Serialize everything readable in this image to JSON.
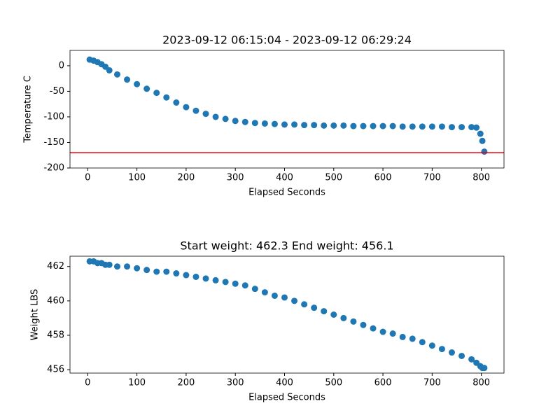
{
  "chart_data": [
    {
      "type": "scatter",
      "title": "2023-09-12 06:15:04 - 2023-09-12 06:29:24",
      "x_label": "Elapsed Seconds",
      "y_label": "Temperature C",
      "x": [
        4,
        12,
        20,
        28,
        36,
        44,
        60,
        80,
        100,
        120,
        140,
        160,
        180,
        200,
        220,
        240,
        260,
        280,
        300,
        320,
        340,
        360,
        380,
        400,
        420,
        440,
        460,
        480,
        500,
        520,
        540,
        560,
        580,
        600,
        620,
        640,
        660,
        680,
        700,
        720,
        740,
        760,
        780,
        790,
        798,
        802,
        806
      ],
      "values": [
        12,
        10,
        7,
        3,
        -2,
        -9,
        -17,
        -27,
        -36,
        -45,
        -53,
        -62,
        -72,
        -81,
        -88,
        -94,
        -100,
        -104,
        -108,
        -110,
        -112,
        -113,
        -114,
        -115,
        -115,
        -116,
        -116,
        -117,
        -117,
        -117,
        -118,
        -118,
        -118,
        -118,
        -118,
        -119,
        -119,
        -119,
        -119,
        -119,
        -120,
        -120,
        -120,
        -121,
        -133,
        -147,
        -168
      ],
      "color": "#1f77b4",
      "hlines": [
        {
          "value": -170,
          "color": "#e8000b"
        }
      ],
      "xlim": [
        -36,
        846
      ],
      "xticks": [
        0,
        100,
        200,
        300,
        400,
        500,
        600,
        700,
        800
      ],
      "ylim": [
        -200,
        30
      ],
      "yticks": [
        -200,
        -150,
        -100,
        -50,
        0
      ]
    },
    {
      "type": "scatter",
      "title": "Start weight: 462.3 End weight: 456.1",
      "x_label": "Elapsed Seconds",
      "y_label": "Weight LBS",
      "x": [
        4,
        12,
        20,
        28,
        36,
        44,
        60,
        80,
        100,
        120,
        140,
        160,
        180,
        200,
        220,
        240,
        260,
        280,
        300,
        320,
        340,
        360,
        380,
        400,
        420,
        440,
        460,
        480,
        500,
        520,
        540,
        560,
        580,
        600,
        620,
        640,
        660,
        680,
        700,
        720,
        740,
        760,
        780,
        790,
        798,
        802,
        806
      ],
      "values": [
        462.3,
        462.3,
        462.2,
        462.2,
        462.1,
        462.1,
        462.0,
        462.0,
        461.9,
        461.8,
        461.7,
        461.7,
        461.6,
        461.5,
        461.4,
        461.3,
        461.2,
        461.1,
        461.0,
        460.9,
        460.7,
        460.5,
        460.3,
        460.2,
        460.0,
        459.8,
        459.6,
        459.4,
        459.2,
        459.0,
        458.8,
        458.6,
        458.4,
        458.2,
        458.1,
        457.9,
        457.8,
        457.6,
        457.4,
        457.2,
        457.0,
        456.8,
        456.6,
        456.4,
        456.2,
        456.1,
        456.1
      ],
      "color": "#1f77b4",
      "xlim": [
        -36,
        846
      ],
      "xticks": [
        0,
        100,
        200,
        300,
        400,
        500,
        600,
        700,
        800
      ],
      "ylim": [
        455.8,
        462.6
      ],
      "yticks": [
        456,
        458,
        460,
        462
      ]
    }
  ]
}
